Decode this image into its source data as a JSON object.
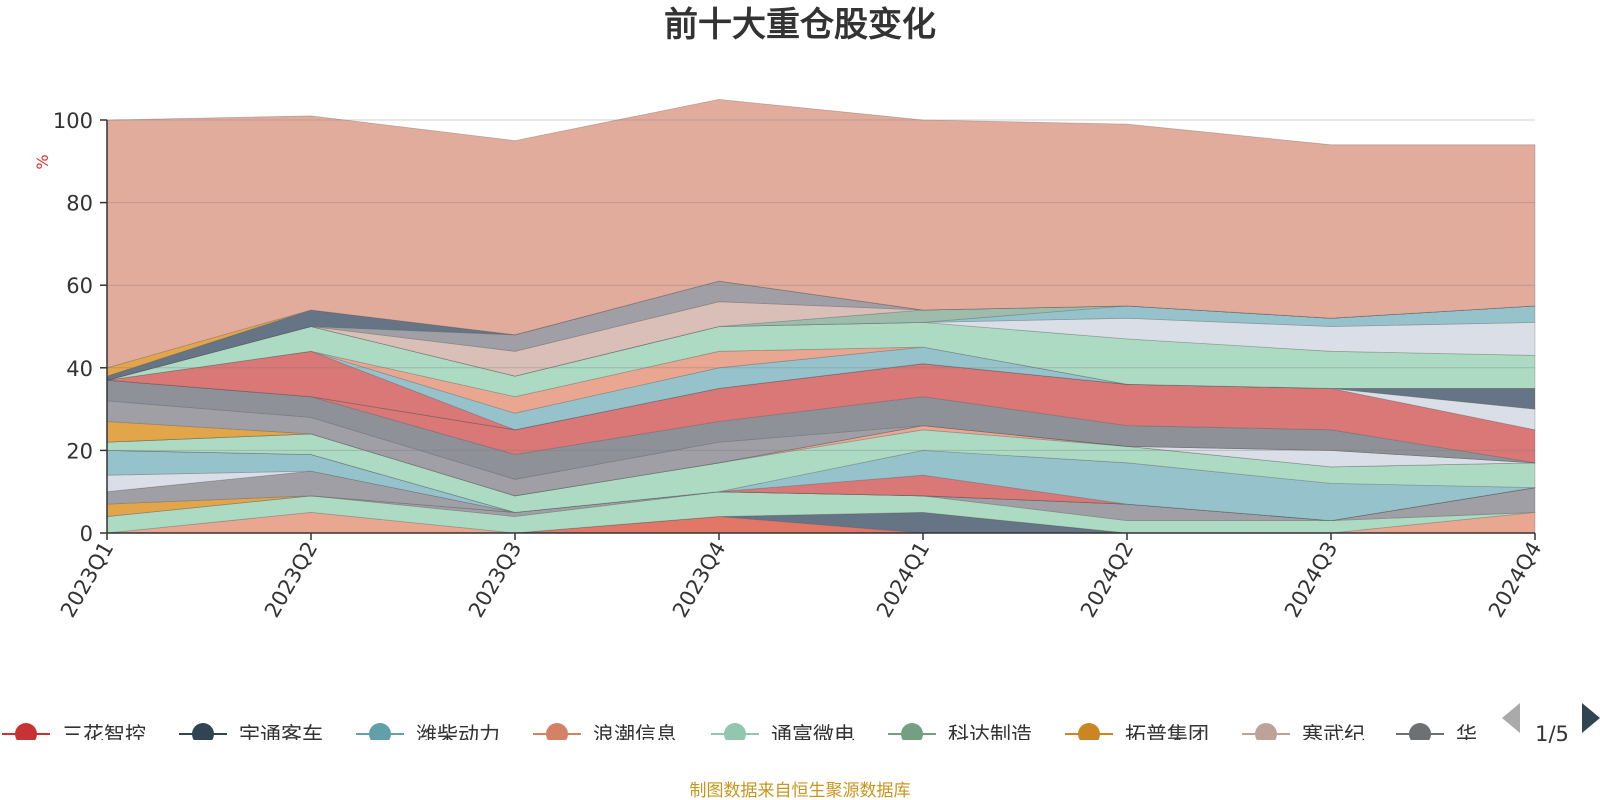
{
  "chart_data": {
    "type": "area",
    "stacked": true,
    "title": "前十大重仓股变化",
    "ylabel": "%",
    "ylim": [
      0,
      100
    ],
    "yticks": [
      "0",
      "20",
      "40",
      "60",
      "80",
      "100"
    ],
    "categories": [
      "2023Q1",
      "2023Q2",
      "2023Q3",
      "2023Q4",
      "2024Q1",
      "2024Q2",
      "2024Q3",
      "2024Q4"
    ],
    "grid": true,
    "legend_position": "bottom",
    "series": [
      {
        "name": "",
        "color": "#e07060",
        "values": [
          0,
          0,
          0,
          4,
          0,
          0,
          0,
          0
        ]
      },
      {
        "name": "",
        "color": "#5d6e7e",
        "values": [
          0,
          0,
          0,
          0,
          5,
          0,
          0,
          0
        ]
      },
      {
        "name": "",
        "color": "#e8a28c",
        "values": [
          0,
          5,
          0,
          0,
          0,
          0,
          0,
          5
        ]
      },
      {
        "name": "",
        "color": "#a8d8c0",
        "values": [
          4,
          4,
          4,
          6,
          4,
          3,
          3,
          0
        ]
      },
      {
        "name": "",
        "color": "#9a9aa0",
        "values": [
          0,
          0,
          1,
          0,
          0,
          4,
          0,
          6
        ]
      },
      {
        "name": "",
        "color": "#e0a040",
        "values": [
          3,
          0,
          0,
          0,
          0,
          0,
          0,
          0
        ]
      },
      {
        "name": "",
        "color": "#9a9aa0",
        "values": [
          3,
          6,
          0,
          0,
          0,
          0,
          0,
          0
        ]
      },
      {
        "name": "",
        "color": "#d8dde6",
        "values": [
          4,
          0,
          0,
          0,
          0,
          0,
          0,
          0
        ]
      },
      {
        "name": "",
        "color": "#90c0c8",
        "values": [
          6,
          4,
          0,
          0,
          0,
          0,
          0,
          0
        ]
      },
      {
        "name": "",
        "color": "#d87070",
        "values": [
          0,
          0,
          0,
          0,
          5,
          0,
          0,
          0
        ]
      },
      {
        "name": "",
        "color": "#90c0c8",
        "values": [
          0,
          0,
          0,
          0,
          6,
          10,
          9,
          0
        ]
      },
      {
        "name": "",
        "color": "#a8d8c0",
        "values": [
          2,
          5,
          4,
          7,
          5,
          4,
          4,
          6
        ]
      },
      {
        "name": "",
        "color": "#e8a28c",
        "values": [
          0,
          0,
          0,
          0,
          1,
          0,
          0,
          0
        ]
      },
      {
        "name": "",
        "color": "#d8dde6",
        "values": [
          0,
          0,
          0,
          0,
          0,
          0,
          4,
          0
        ]
      },
      {
        "name": "",
        "color": "#e0a040",
        "values": [
          5,
          0,
          0,
          0,
          0,
          0,
          0,
          0
        ]
      },
      {
        "name": "",
        "color": "#9a9aa0",
        "values": [
          5,
          4,
          4,
          5,
          0,
          0,
          0,
          0
        ]
      },
      {
        "name": "",
        "color": "#888c92",
        "values": [
          5,
          5,
          6,
          5,
          7,
          5,
          5,
          0
        ]
      },
      {
        "name": "",
        "color": "#d87070",
        "values": [
          0,
          0,
          6,
          8,
          8,
          10,
          10,
          8
        ]
      },
      {
        "name": "",
        "color": "#d8dde6",
        "values": [
          0,
          0,
          0,
          0,
          0,
          0,
          0,
          5
        ]
      },
      {
        "name": "",
        "color": "#5d6e7e",
        "values": [
          0,
          0,
          0,
          0,
          0,
          0,
          0,
          5
        ]
      },
      {
        "name": "",
        "color": "#d87070",
        "values": [
          0,
          11,
          0,
          0,
          0,
          0,
          0,
          0
        ]
      },
      {
        "name": "",
        "color": "#90c0c8",
        "values": [
          0,
          0,
          4,
          5,
          4,
          0,
          0,
          0
        ]
      },
      {
        "name": "",
        "color": "#e8a28c",
        "values": [
          0,
          0,
          4,
          4,
          0,
          0,
          0,
          0
        ]
      },
      {
        "name": "",
        "color": "#a8d8c0",
        "values": [
          0,
          6,
          5,
          6,
          6,
          11,
          9,
          8
        ]
      },
      {
        "name": "",
        "color": "#d8dde6",
        "values": [
          0,
          0,
          0,
          0,
          0,
          5,
          6,
          8
        ]
      },
      {
        "name": "",
        "color": "#90c0c8",
        "values": [
          0,
          0,
          0,
          0,
          0,
          3,
          2,
          4
        ]
      },
      {
        "name": "",
        "color": "#98b8a8",
        "values": [
          0,
          0,
          0,
          0,
          3,
          0,
          0,
          0
        ]
      },
      {
        "name": "",
        "color": "#d8bcb4",
        "values": [
          0,
          0,
          6,
          6,
          0,
          0,
          0,
          0
        ]
      },
      {
        "name": "",
        "color": "#9a9aa0",
        "values": [
          0,
          0,
          4,
          5,
          0,
          0,
          0,
          0
        ]
      },
      {
        "name": "",
        "color": "#5d6e7e",
        "values": [
          1,
          4,
          0,
          0,
          0,
          0,
          0,
          0
        ]
      },
      {
        "name": "",
        "color": "#e0a040",
        "values": [
          2,
          0,
          0,
          0,
          0,
          0,
          0,
          0
        ]
      },
      {
        "name": "",
        "color": "#e0a898",
        "values": [
          60,
          47,
          47,
          44,
          46,
          44,
          42,
          39
        ]
      }
    ]
  },
  "legend": {
    "items": [
      {
        "name": "三花智控",
        "color": "#c83232"
      },
      {
        "name": "宇通客车",
        "color": "#2f4554"
      },
      {
        "name": "潍柴动力",
        "color": "#61a0a8"
      },
      {
        "name": "浪潮信息",
        "color": "#d48265"
      },
      {
        "name": "通富微电",
        "color": "#91c7ae"
      },
      {
        "name": "科达制造",
        "color": "#749f83"
      },
      {
        "name": "拓普集团",
        "color": "#ca8622"
      },
      {
        "name": "寒武纪",
        "color": "#bda29a"
      },
      {
        "name": "华",
        "color": "#6e7074"
      }
    ],
    "page": "1/5"
  },
  "source": "制图数据来自恒生聚源数据库"
}
